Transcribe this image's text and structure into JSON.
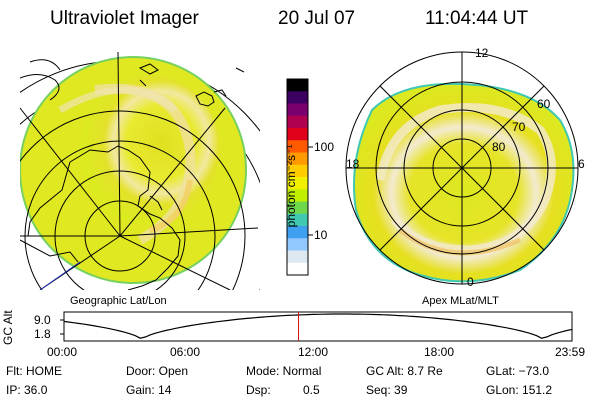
{
  "header": {
    "title": "Ultraviolet Imager",
    "date": "20 Jul 07",
    "time": "11:04:44 UT"
  },
  "left_map": {
    "label": "Geographic Lat/Lon"
  },
  "right_map": {
    "label": "Apex MLat/MLT",
    "lat_labels": [
      "60",
      "70",
      "80"
    ],
    "mlt_labels": {
      "top": "12",
      "left": "18",
      "right": "6",
      "bottom": "0"
    }
  },
  "colorbar": {
    "unit": "photon cm⁻²s⁻¹",
    "ticks": [
      "100",
      "10"
    ],
    "colors": [
      "#000000",
      "#3b0060",
      "#7a0070",
      "#b00050",
      "#e0001a",
      "#ff5a00",
      "#ff9a00",
      "#ffcc00",
      "#f0f000",
      "#c0f000",
      "#6fd84a",
      "#40c8b0",
      "#40a0f0",
      "#90c8ff",
      "#dde8f0",
      "#ffffff"
    ]
  },
  "timeline": {
    "ylabel": "GC Alt",
    "y_ticks": [
      "9.0",
      "1.8"
    ],
    "x_ticks": [
      "00:00",
      "06:00",
      "12:00",
      "18:00",
      "23:59"
    ],
    "current_time_marker_hours": 11.08
  },
  "status": {
    "flt": "Flt: HOME",
    "ip": "IP: 36.0",
    "door": "Door: Open",
    "gain": "Gain: 14",
    "mode": "Mode: Normal",
    "dsp_label": "Dsp:",
    "dsp_value": "0.5",
    "gc_alt": "GC Alt: 8.7 Re",
    "seq": "Seq: 39",
    "glat": "GLat: −73.0",
    "glon": "GLon: 151.2"
  }
}
